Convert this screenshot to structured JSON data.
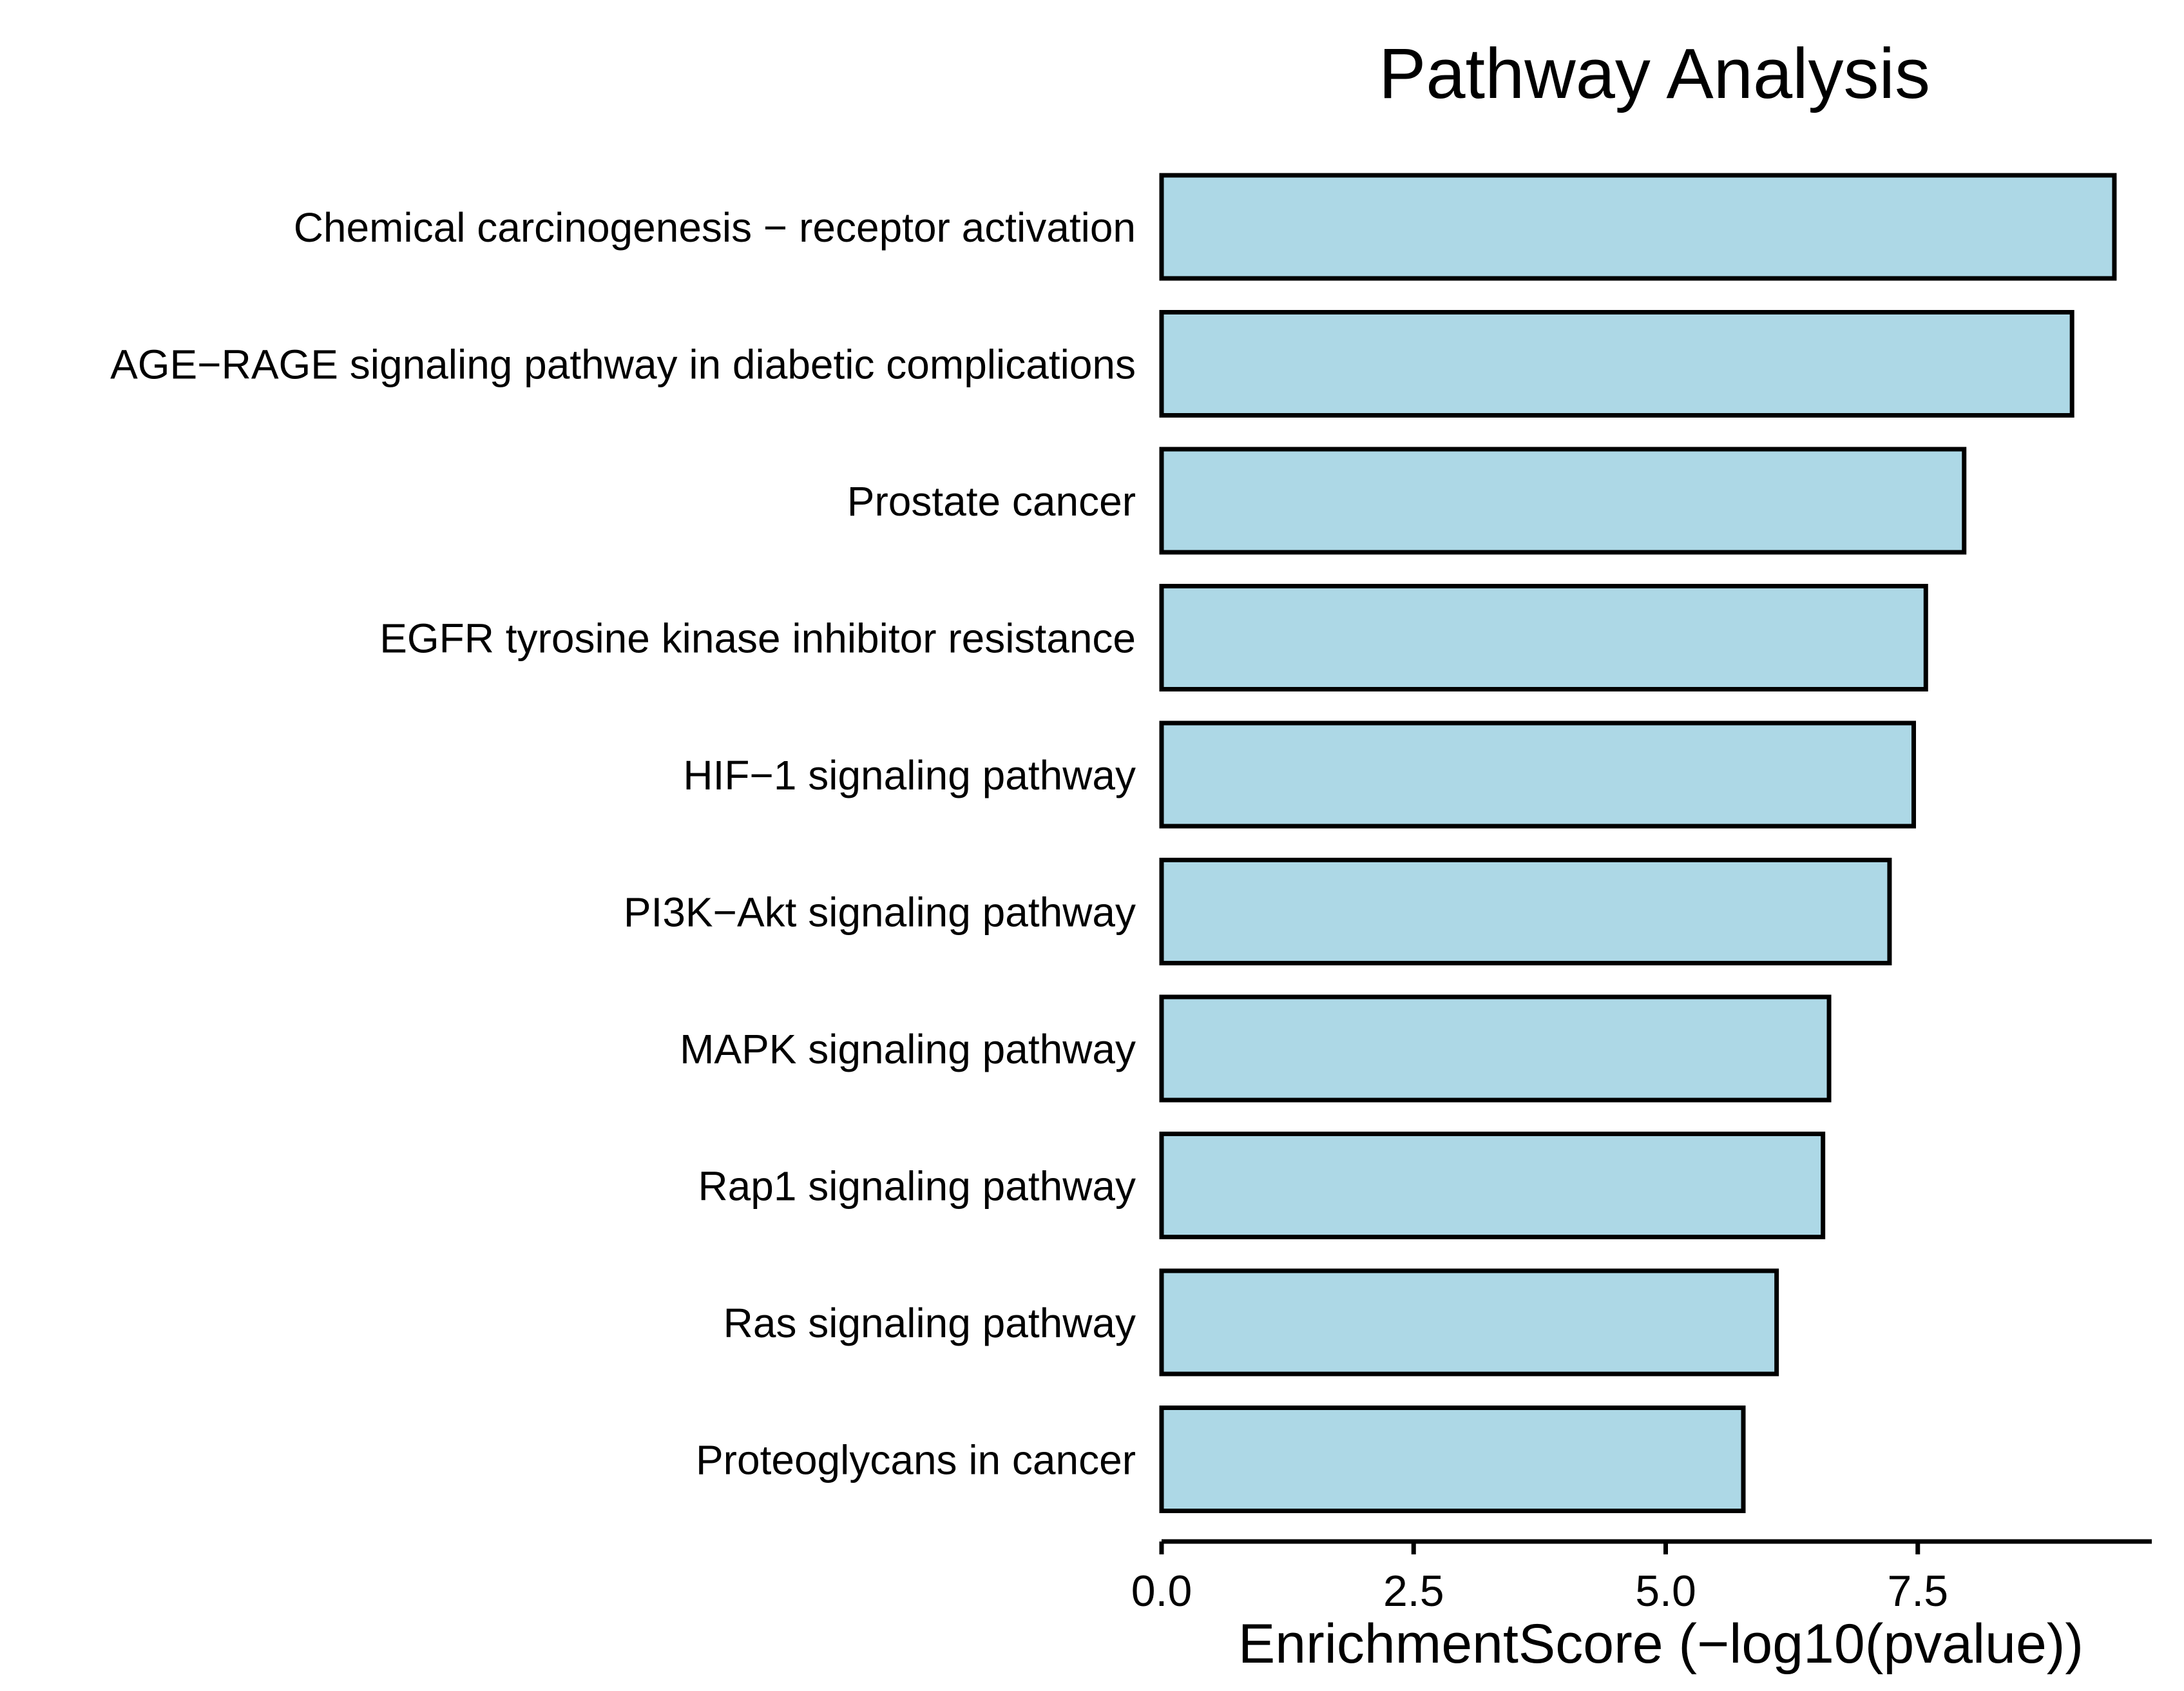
{
  "chart_data": {
    "type": "bar",
    "orientation": "horizontal",
    "title": "Pathway Analysis",
    "xlabel": "EnrichmentScore (−log10(pvalue))",
    "ylabel": "",
    "categories": [
      "Chemical carcinogenesis − receptor activation",
      "AGE−RAGE signaling pathway in diabetic complications",
      "Prostate cancer",
      "EGFR tyrosine kinase inhibitor resistance",
      "HIF−1 signaling pathway",
      "PI3K−Akt signaling pathway",
      "MAPK signaling pathway",
      "Rap1 signaling pathway",
      "Ras signaling pathway",
      "Proteoglycans in cancer"
    ],
    "values": [
      9.45,
      9.03,
      7.96,
      7.58,
      7.46,
      7.22,
      6.62,
      6.56,
      6.1,
      5.77
    ],
    "xlim": [
      0,
      9.9
    ],
    "xticks": [
      "0.0",
      "2.5",
      "5.0",
      "7.5"
    ],
    "grid": false,
    "legend": "none",
    "colors": {
      "bar_fill": "#add8e6",
      "bar_stroke": "#000000",
      "axis": "#000000",
      "text": "#000000",
      "background": "#ffffff"
    }
  }
}
